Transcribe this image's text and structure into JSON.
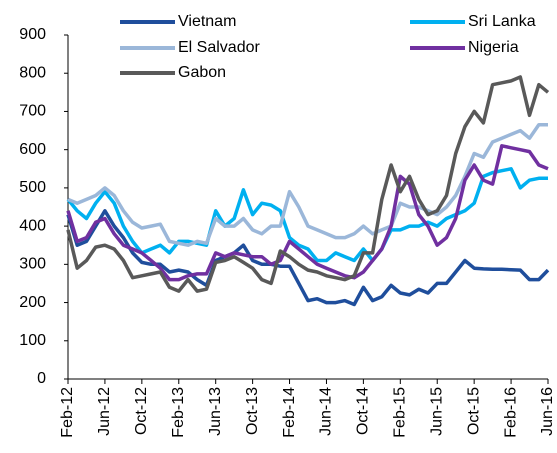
{
  "chart_data": {
    "type": "line",
    "categories": [
      "Feb-12",
      null,
      null,
      null,
      "Jun-12",
      null,
      null,
      null,
      "Oct-12",
      null,
      null,
      null,
      "Feb-13",
      null,
      null,
      null,
      "Jun-13",
      null,
      null,
      null,
      "Oct-13",
      null,
      null,
      null,
      "Feb-14",
      null,
      null,
      null,
      "Jun-14",
      null,
      null,
      null,
      "Oct-14",
      null,
      null,
      null,
      "Feb-15",
      null,
      null,
      null,
      "Jun-15",
      null,
      null,
      null,
      "Oct-15",
      null,
      null,
      null,
      "Feb-16",
      null,
      null,
      null,
      "Jun-16"
    ],
    "series": [
      {
        "name": "Vietnam",
        "color": "#1f4e9c",
        "values": [
          430,
          350,
          360,
          400,
          440,
          400,
          370,
          330,
          305,
          300,
          300,
          280,
          285,
          280,
          260,
          245,
          310,
          320,
          330,
          350,
          310,
          300,
          300,
          295,
          295,
          250,
          205,
          210,
          200,
          200,
          205,
          195,
          240,
          205,
          215,
          245,
          225,
          220,
          235,
          225,
          250,
          250,
          280,
          310,
          290,
          288,
          287,
          287,
          286,
          285,
          260,
          260,
          285
        ]
      },
      {
        "name": "Sri Lanka",
        "color": "#00b0f0",
        "values": [
          470,
          440,
          420,
          460,
          490,
          460,
          400,
          360,
          330,
          340,
          350,
          330,
          360,
          360,
          355,
          350,
          440,
          400,
          420,
          495,
          430,
          460,
          455,
          440,
          370,
          350,
          340,
          310,
          310,
          330,
          320,
          310,
          340,
          310,
          340,
          390,
          390,
          400,
          400,
          410,
          400,
          420,
          430,
          440,
          460,
          530,
          540,
          545,
          550,
          500,
          520,
          525,
          525
        ]
      },
      {
        "name": "El Salvador",
        "color": "#9bb7d9",
        "values": [
          470,
          460,
          470,
          480,
          500,
          480,
          440,
          410,
          395,
          400,
          405,
          360,
          355,
          350,
          360,
          355,
          420,
          400,
          400,
          420,
          390,
          380,
          400,
          400,
          490,
          450,
          400,
          390,
          380,
          370,
          370,
          380,
          400,
          380,
          390,
          400,
          460,
          450,
          450,
          440,
          430,
          450,
          480,
          530,
          590,
          580,
          620,
          630,
          640,
          650,
          630,
          665,
          665
        ]
      },
      {
        "name": "Nigeria",
        "color": "#7030a0",
        "values": [
          440,
          360,
          370,
          410,
          420,
          380,
          350,
          340,
          330,
          310,
          290,
          260,
          260,
          270,
          275,
          275,
          330,
          320,
          330,
          325,
          320,
          320,
          300,
          310,
          360,
          340,
          320,
          300,
          290,
          280,
          270,
          265,
          280,
          310,
          340,
          400,
          530,
          510,
          430,
          400,
          350,
          370,
          420,
          520,
          560,
          520,
          510,
          610,
          605,
          600,
          595,
          560,
          550
        ]
      },
      {
        "name": "Gabon",
        "color": "#595959",
        "values": [
          390,
          290,
          310,
          345,
          350,
          340,
          310,
          265,
          270,
          275,
          280,
          240,
          230,
          260,
          230,
          235,
          305,
          310,
          320,
          305,
          290,
          260,
          250,
          335,
          320,
          300,
          285,
          280,
          270,
          265,
          260,
          270,
          330,
          330,
          470,
          560,
          490,
          530,
          470,
          430,
          440,
          480,
          590,
          660,
          700,
          670,
          770,
          775,
          780,
          790,
          690,
          770,
          750
        ]
      }
    ],
    "ylim": [
      0,
      900
    ],
    "yticks": [
      0,
      100,
      200,
      300,
      400,
      500,
      600,
      700,
      800,
      900
    ]
  }
}
